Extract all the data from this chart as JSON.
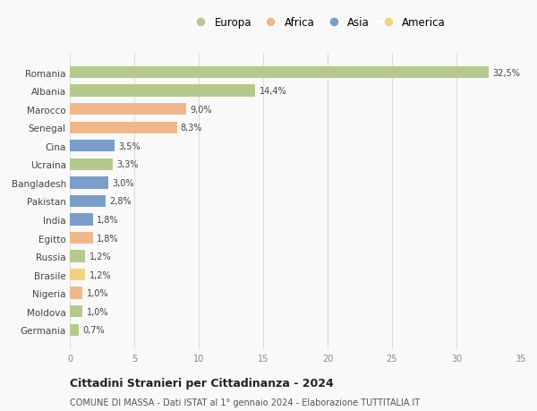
{
  "categories": [
    "Romania",
    "Albania",
    "Marocco",
    "Senegal",
    "Cina",
    "Ucraina",
    "Bangladesh",
    "Pakistan",
    "India",
    "Egitto",
    "Russia",
    "Brasile",
    "Nigeria",
    "Moldova",
    "Germania"
  ],
  "values": [
    32.5,
    14.4,
    9.0,
    8.3,
    3.5,
    3.3,
    3.0,
    2.8,
    1.8,
    1.8,
    1.2,
    1.2,
    1.0,
    1.0,
    0.7
  ],
  "labels": [
    "32,5%",
    "14,4%",
    "9,0%",
    "8,3%",
    "3,5%",
    "3,3%",
    "3,0%",
    "2,8%",
    "1,8%",
    "1,8%",
    "1,2%",
    "1,2%",
    "1,0%",
    "1,0%",
    "0,7%"
  ],
  "colors": [
    "#b5c98e",
    "#b5c98e",
    "#f0b88a",
    "#f0b88a",
    "#7b9ec9",
    "#b5c98e",
    "#7b9ec9",
    "#7b9ec9",
    "#7b9ec9",
    "#f0b88a",
    "#b5c98e",
    "#f5d080",
    "#f0b88a",
    "#b5c98e",
    "#b5c98e"
  ],
  "legend_labels": [
    "Europa",
    "Africa",
    "Asia",
    "America"
  ],
  "legend_colors": [
    "#b5c98e",
    "#f0b88a",
    "#7b9ec9",
    "#f5d080"
  ],
  "xlim": [
    0,
    35
  ],
  "xticks": [
    0,
    5,
    10,
    15,
    20,
    25,
    30,
    35
  ],
  "title": "Cittadini Stranieri per Cittadinanza - 2024",
  "subtitle": "COMUNE DI MASSA - Dati ISTAT al 1° gennaio 2024 - Elaborazione TUTTITALIA.IT",
  "bg_color": "#f9f9f9",
  "grid_color": "#dddddd",
  "bar_height": 0.65
}
